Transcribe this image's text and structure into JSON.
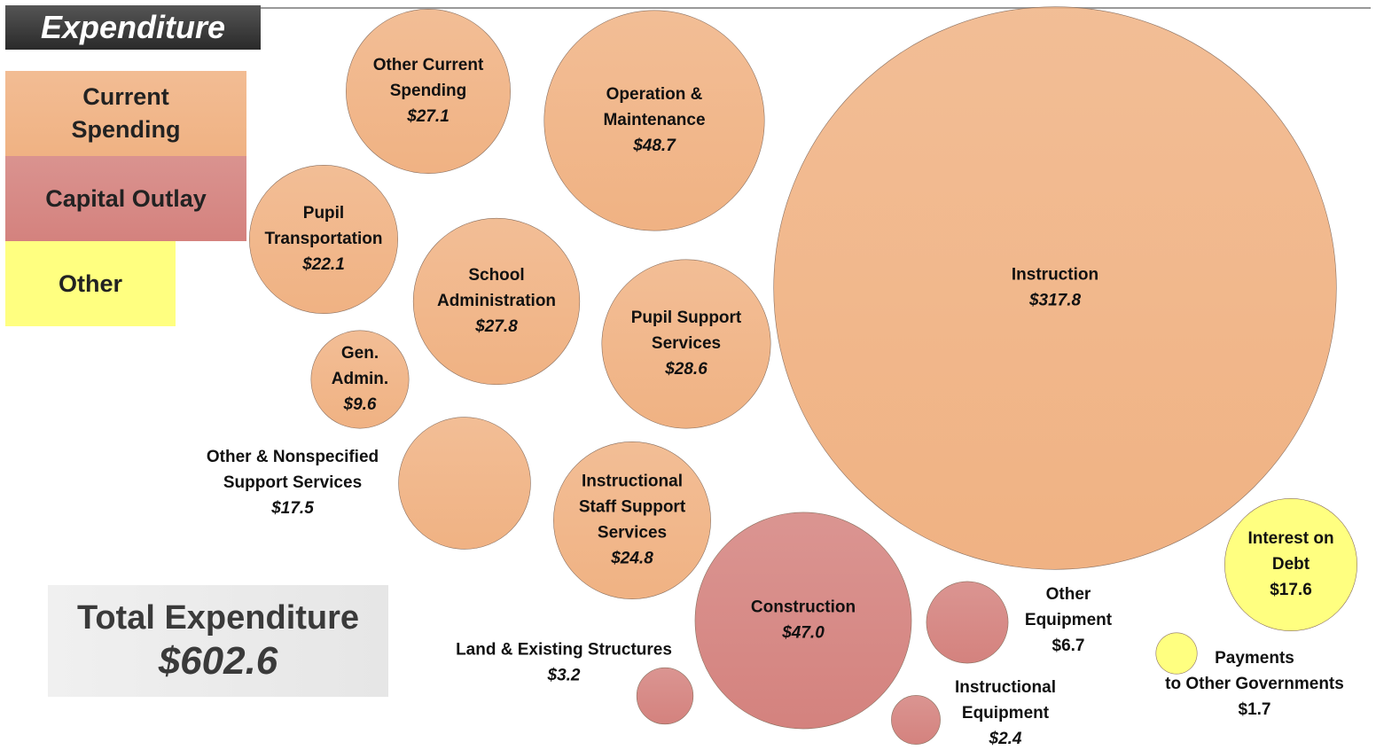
{
  "chart_data": {
    "type": "bubble",
    "title": "Expenditure",
    "series": [
      {
        "name": "Current Spending",
        "color": "#f0b283",
        "names": [
          "Other Current\nSpending",
          "Operation &\nMaintenance",
          "Instruction",
          "Pupil\nTransportation",
          "School\nAdministration",
          "Pupil Support\nServices",
          "Gen.\nAdmin.",
          "Other & Nonspecified\nSupport Services",
          "Instructional\nStaff Support\nServices"
        ],
        "values": [
          27.1,
          48.7,
          317.8,
          22.1,
          27.8,
          28.6,
          9.6,
          17.5,
          24.8
        ],
        "value_labels": [
          "$27.1",
          "$48.7",
          "$317.8",
          "$22.1",
          "$27.8",
          "$28.6",
          "$9.6",
          "$17.5",
          "$24.8"
        ]
      },
      {
        "name": "Capital Outlay",
        "color": "#d4827e",
        "names": [
          "Construction",
          "Other\nEquipment",
          "Land & Existing Structures",
          "Instructional\nEquipment"
        ],
        "values": [
          47,
          6.7,
          3.2,
          2.4
        ],
        "value_labels": [
          "$47.0",
          "$6.7",
          "$3.2",
          "$2.4"
        ]
      },
      {
        "name": "Other",
        "color": "#ffff80",
        "names": [
          "Interest on\nDebt",
          "Payments\nto Other Governments"
        ],
        "values": [
          17.6,
          1.7
        ],
        "value_labels": [
          "$17.6",
          "$1.7"
        ]
      }
    ],
    "total": {
      "label": "Total Expenditure",
      "value": 602.6,
      "value_label": "$602.6"
    }
  }
}
